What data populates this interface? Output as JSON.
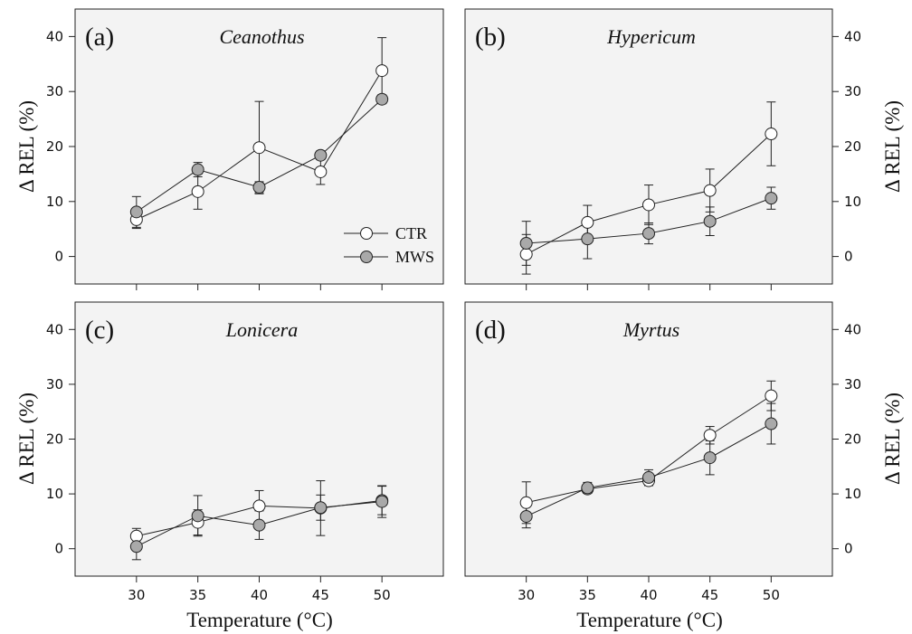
{
  "figure": {
    "xlabel": "Temperature (°C)",
    "ylabel": "Δ REL (%)",
    "colors": {
      "plot_bg": "#f3f3f3",
      "axis": "#222222",
      "ctr_fill": "#ffffff",
      "mws_fill": "#a9a9a9"
    },
    "legend": {
      "entries": [
        "CTR",
        "MWS"
      ],
      "panel": "a",
      "placement": "bottom-right"
    }
  },
  "chart_data": [
    {
      "type": "line",
      "panel_label": "(a)",
      "title": "Ceanothus",
      "x": [
        30,
        35,
        40,
        45,
        50
      ],
      "xlim": [
        25,
        55
      ],
      "ylim": [
        -5,
        45
      ],
      "yticks": [
        0,
        10,
        20,
        30,
        40
      ],
      "xticks": [
        30,
        35,
        40,
        45,
        50
      ],
      "series": [
        {
          "name": "CTR",
          "values": [
            6.7,
            11.8,
            19.8,
            15.4,
            33.8
          ],
          "errors": [
            1.6,
            3.2,
            8.4,
            2.3,
            6.0
          ]
        },
        {
          "name": "MWS",
          "values": [
            8.1,
            15.8,
            12.6,
            18.4,
            28.6
          ],
          "errors": [
            2.8,
            1.3,
            1.0,
            0.8,
            0.8
          ]
        }
      ]
    },
    {
      "type": "line",
      "panel_label": "(b)",
      "title": "Hypericum",
      "x": [
        30,
        35,
        40,
        45,
        50
      ],
      "xlim": [
        25,
        55
      ],
      "ylim": [
        -5,
        45
      ],
      "yticks": [
        0,
        10,
        20,
        30,
        40
      ],
      "xticks": [
        30,
        35,
        40,
        45,
        50
      ],
      "series": [
        {
          "name": "CTR",
          "values": [
            0.4,
            6.2,
            9.4,
            12.0,
            22.3
          ],
          "errors": [
            3.6,
            3.1,
            3.6,
            3.9,
            5.8
          ]
        },
        {
          "name": "MWS",
          "values": [
            2.4,
            3.2,
            4.2,
            6.4,
            10.6
          ],
          "errors": [
            4.0,
            3.6,
            1.9,
            2.6,
            2.0
          ]
        }
      ]
    },
    {
      "type": "line",
      "panel_label": "(c)",
      "title": "Lonicera",
      "x": [
        30,
        35,
        40,
        45,
        50
      ],
      "xlim": [
        25,
        55
      ],
      "ylim": [
        -5,
        45
      ],
      "yticks": [
        0,
        10,
        20,
        30,
        40
      ],
      "xticks": [
        30,
        35,
        40,
        45,
        50
      ],
      "series": [
        {
          "name": "CTR",
          "values": [
            2.3,
            4.8,
            7.8,
            7.4,
            8.8
          ],
          "errors": [
            1.4,
            2.3,
            2.8,
            5.0,
            2.6
          ]
        },
        {
          "name": "MWS",
          "values": [
            0.4,
            6.0,
            4.3,
            7.5,
            8.6
          ],
          "errors": [
            2.4,
            3.7,
            2.6,
            2.3,
            2.9
          ]
        }
      ]
    },
    {
      "type": "line",
      "panel_label": "(d)",
      "title": "Myrtus",
      "x": [
        30,
        35,
        40,
        45,
        50
      ],
      "xlim": [
        25,
        55
      ],
      "ylim": [
        -5,
        45
      ],
      "yticks": [
        0,
        10,
        20,
        30,
        40
      ],
      "xticks": [
        30,
        35,
        40,
        45,
        50
      ],
      "series": [
        {
          "name": "CTR",
          "values": [
            8.4,
            10.9,
            12.4,
            20.7,
            27.9
          ],
          "errors": [
            3.8,
            0.8,
            0.9,
            1.6,
            2.7
          ]
        },
        {
          "name": "MWS",
          "values": [
            5.9,
            11.1,
            13.0,
            16.6,
            22.8
          ],
          "errors": [
            2.1,
            1.0,
            1.4,
            3.1,
            3.7
          ]
        }
      ]
    }
  ]
}
